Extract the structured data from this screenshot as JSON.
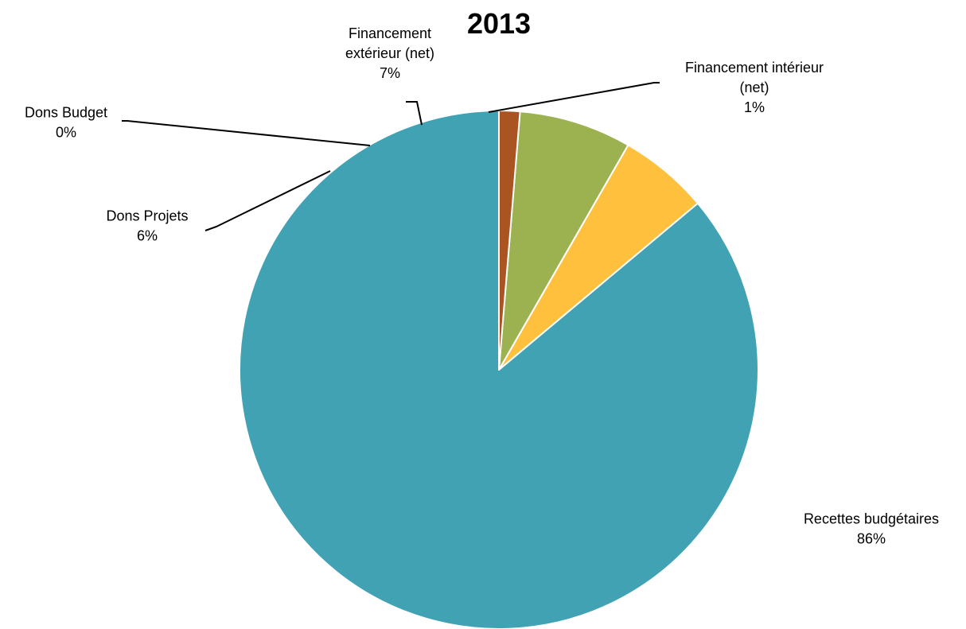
{
  "chart_data": {
    "type": "pie",
    "title": "2013",
    "slices": [
      {
        "label": "Recettes budgétaires",
        "label_lines": [
          "Recettes budgétaires"
        ],
        "pct_label": "86%",
        "value": 86.1,
        "color": "#41A2B4"
      },
      {
        "label": "Dons Projets",
        "label_lines": [
          "Dons Projets"
        ],
        "pct_label": "6%",
        "value": 5.6,
        "color": "#FFC13D"
      },
      {
        "label": "Dons Budget",
        "label_lines": [
          "Dons Budget"
        ],
        "pct_label": "0%",
        "value": 0.0,
        "color": "#F07C2F"
      },
      {
        "label": "Financement extérieur (net)",
        "label_lines": [
          "Financement",
          "extérieur (net)"
        ],
        "pct_label": "7%",
        "value": 7.0,
        "color": "#9CB14F"
      },
      {
        "label": "Financement intérieur (net)",
        "label_lines": [
          "Financement intérieur",
          "(net)"
        ],
        "pct_label": "1%",
        "value": 1.3,
        "color": "#A95421"
      }
    ],
    "start_angle": "12 o'clock",
    "direction": "counter-clockwise",
    "legend": "none"
  }
}
